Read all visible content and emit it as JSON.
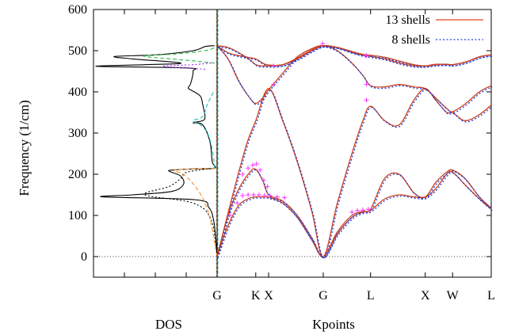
{
  "chart_data": {
    "type": "line",
    "title": "",
    "ylabel": "Frequency (1/cm)",
    "xlabel_dos": "DOS",
    "xlabel_k": "Kpoints",
    "ylim": [
      -50,
      600
    ],
    "y_ticks": [
      "0",
      "100",
      "200",
      "300",
      "400",
      "500",
      "600"
    ],
    "y_tick_values": [
      0,
      100,
      200,
      300,
      400,
      500,
      600
    ],
    "kpoint_labels": [
      "G",
      "K",
      "X",
      "G",
      "L",
      "X",
      "W",
      "L"
    ],
    "kpoint_positions": [
      0.0,
      1.061,
      1.414,
      2.914,
      4.213,
      5.713,
      6.463,
      7.524
    ],
    "grid": false,
    "legend_position": "top-right",
    "series": [
      {
        "name": "13 shells",
        "color": "#e8401c",
        "dash": "solid"
      },
      {
        "name": "8 shells",
        "color": "#1f3fd8",
        "dash": "dotted"
      }
    ],
    "bands_13": [
      {
        "x": [
          0.0,
          0.3,
          0.6,
          0.9,
          1.061,
          1.25,
          1.414,
          1.8,
          2.2,
          2.6,
          2.914,
          3.3,
          3.7,
          4.0,
          4.213,
          4.6,
          5.0,
          5.4,
          5.713,
          6.0,
          6.3,
          6.463,
          6.8,
          7.2,
          7.524
        ],
        "y": [
          0,
          75,
          125,
          142,
          145,
          145,
          144,
          130,
          95,
          40,
          0,
          55,
          95,
          108,
          112,
          140,
          150,
          145,
          144,
          165,
          200,
          205,
          175,
          140,
          115
        ]
      },
      {
        "x": [
          0.0,
          0.3,
          0.6,
          0.9,
          1.061,
          1.25,
          1.414,
          1.8,
          2.2,
          2.6,
          2.914,
          3.3,
          3.7,
          4.0,
          4.213,
          4.6,
          5.0,
          5.4,
          5.713,
          6.0,
          6.3,
          6.463,
          6.8,
          7.2,
          7.524
        ],
        "y": [
          0,
          100,
          165,
          205,
          212,
          185,
          150,
          135,
          100,
          45,
          0,
          60,
          100,
          110,
          115,
          190,
          200,
          155,
          145,
          180,
          205,
          210,
          190,
          145,
          118
        ]
      },
      {
        "x": [
          0.0,
          0.4,
          0.8,
          1.061,
          1.414,
          1.8,
          2.2,
          2.6,
          2.914,
          3.3,
          3.7,
          4.0,
          4.213,
          4.6,
          5.0,
          5.4,
          5.713,
          6.0,
          6.3,
          6.463,
          6.8,
          7.2,
          7.524
        ],
        "y": [
          0,
          140,
          270,
          330,
          408,
          330,
          230,
          110,
          0,
          130,
          250,
          330,
          365,
          330,
          320,
          380,
          408,
          380,
          350,
          350,
          330,
          345,
          368
        ]
      },
      {
        "x": [
          0.0,
          0.3,
          0.6,
          0.9,
          1.061,
          1.25,
          1.414,
          1.8,
          2.2,
          2.6,
          2.914,
          3.3,
          3.7,
          4.0,
          4.213,
          4.6,
          5.0,
          5.4,
          5.713,
          6.0,
          6.3,
          6.463,
          6.8,
          7.2,
          7.524
        ],
        "y": [
          512,
          480,
          425,
          385,
          372,
          385,
          405,
          445,
          485,
          505,
          512,
          500,
          470,
          440,
          415,
          412,
          418,
          412,
          408,
          385,
          360,
          352,
          370,
          400,
          415
        ]
      },
      {
        "x": [
          0.0,
          0.3,
          0.6,
          0.9,
          1.061,
          1.25,
          1.414,
          1.8,
          2.2,
          2.6,
          2.914,
          3.3,
          3.7,
          4.0,
          4.213,
          4.6,
          5.0,
          5.4,
          5.713,
          6.0,
          6.3,
          6.463,
          6.8,
          7.2,
          7.524
        ],
        "y": [
          512,
          495,
          488,
          483,
          480,
          470,
          465,
          466,
          480,
          500,
          512,
          508,
          496,
          489,
          486,
          480,
          470,
          463,
          463,
          467,
          467,
          466,
          472,
          485,
          490
        ]
      },
      {
        "x": [
          0.0,
          0.3,
          0.6,
          0.9,
          1.061,
          1.25,
          1.414,
          1.8,
          2.2,
          2.6,
          2.914,
          3.3,
          3.7,
          4.0,
          4.213,
          4.6,
          5.0,
          5.4,
          5.713,
          6.0,
          6.3,
          6.463,
          6.8,
          7.2,
          7.524
        ],
        "y": [
          512,
          508,
          495,
          478,
          466,
          463,
          463,
          466,
          482,
          502,
          512,
          508,
          498,
          491,
          489,
          484,
          475,
          466,
          463,
          466,
          467,
          466,
          472,
          485,
          490
        ]
      }
    ],
    "markers": [
      {
        "x": 0.35,
        "y": 100
      },
      {
        "x": 0.55,
        "y": 130
      },
      {
        "x": 0.7,
        "y": 148
      },
      {
        "x": 0.85,
        "y": 150
      },
      {
        "x": 1.0,
        "y": 150
      },
      {
        "x": 1.15,
        "y": 150
      },
      {
        "x": 1.3,
        "y": 148
      },
      {
        "x": 1.45,
        "y": 148
      },
      {
        "x": 1.65,
        "y": 145
      },
      {
        "x": 1.85,
        "y": 143
      },
      {
        "x": 0.7,
        "y": 200
      },
      {
        "x": 0.85,
        "y": 215
      },
      {
        "x": 0.98,
        "y": 222
      },
      {
        "x": 1.08,
        "y": 225
      },
      {
        "x": 1.18,
        "y": 210
      },
      {
        "x": 1.28,
        "y": 185
      },
      {
        "x": 1.38,
        "y": 170
      },
      {
        "x": 1.55,
        "y": 418
      },
      {
        "x": 1.55,
        "y": 463
      },
      {
        "x": 2.9,
        "y": 517
      },
      {
        "x": 4.1,
        "y": 380
      },
      {
        "x": 4.1,
        "y": 418
      },
      {
        "x": 4.1,
        "y": 488
      },
      {
        "x": 3.7,
        "y": 108
      },
      {
        "x": 3.85,
        "y": 112
      },
      {
        "x": 4.0,
        "y": 113
      },
      {
        "x": 4.15,
        "y": 115
      }
    ],
    "dos_curves": [
      {
        "color": "#000000",
        "dash": "solid",
        "y": [
          0,
          40,
          90,
          120,
          138,
          145,
          150,
          158,
          175,
          195,
          205,
          208,
          210,
          213,
          215,
          230,
          280,
          320,
          325,
          330,
          340,
          370,
          390,
          405,
          410,
          420,
          450,
          458,
          462,
          466,
          470,
          480,
          486,
          490,
          500,
          510,
          512
        ],
        "d": [
          0,
          0.01,
          0.03,
          0.07,
          0.18,
          0.95,
          0.7,
          0.38,
          0.28,
          0.3,
          0.38,
          0.4,
          0.38,
          0.2,
          0.02,
          0.04,
          0.06,
          0.12,
          0.2,
          0.12,
          0.1,
          0.12,
          0.14,
          0.22,
          0.24,
          0.22,
          0.2,
          0.25,
          1.0,
          0.6,
          0.3,
          0.7,
          0.85,
          0.5,
          0.2,
          0.1,
          0.02
        ]
      },
      {
        "color": "#000000",
        "dash": "dotted",
        "y": [
          0,
          90,
          130,
          150,
          170,
          190,
          205,
          215
        ],
        "d": [
          0,
          0.05,
          0.2,
          0.6,
          0.4,
          0.3,
          0.25,
          0.02
        ]
      },
      {
        "color": "#ff8c1a",
        "dash": "dashed",
        "y": [
          0,
          80,
          130,
          170,
          200,
          210,
          215
        ],
        "d": [
          0,
          0.05,
          0.1,
          0.18,
          0.28,
          0.35,
          0.0
        ]
      },
      {
        "color": "#1fbfbf",
        "dash": "dashed",
        "y": [
          215,
          260,
          300,
          320,
          330,
          340,
          370,
          400
        ],
        "d": [
          0.02,
          0.04,
          0.08,
          0.14,
          0.2,
          0.12,
          0.08,
          0.03
        ]
      },
      {
        "color": "#2bb84a",
        "dash": "dashed",
        "y": [
          470,
          478,
          484,
          488,
          492,
          500,
          510
        ],
        "d": [
          0.02,
          0.3,
          0.55,
          0.6,
          0.35,
          0.1,
          0.0
        ]
      },
      {
        "color": "#a020f0",
        "dash": "dotted",
        "y": [
          455,
          462,
          466,
          470
        ],
        "d": [
          0.1,
          0.45,
          0.2,
          0.05
        ]
      }
    ]
  }
}
